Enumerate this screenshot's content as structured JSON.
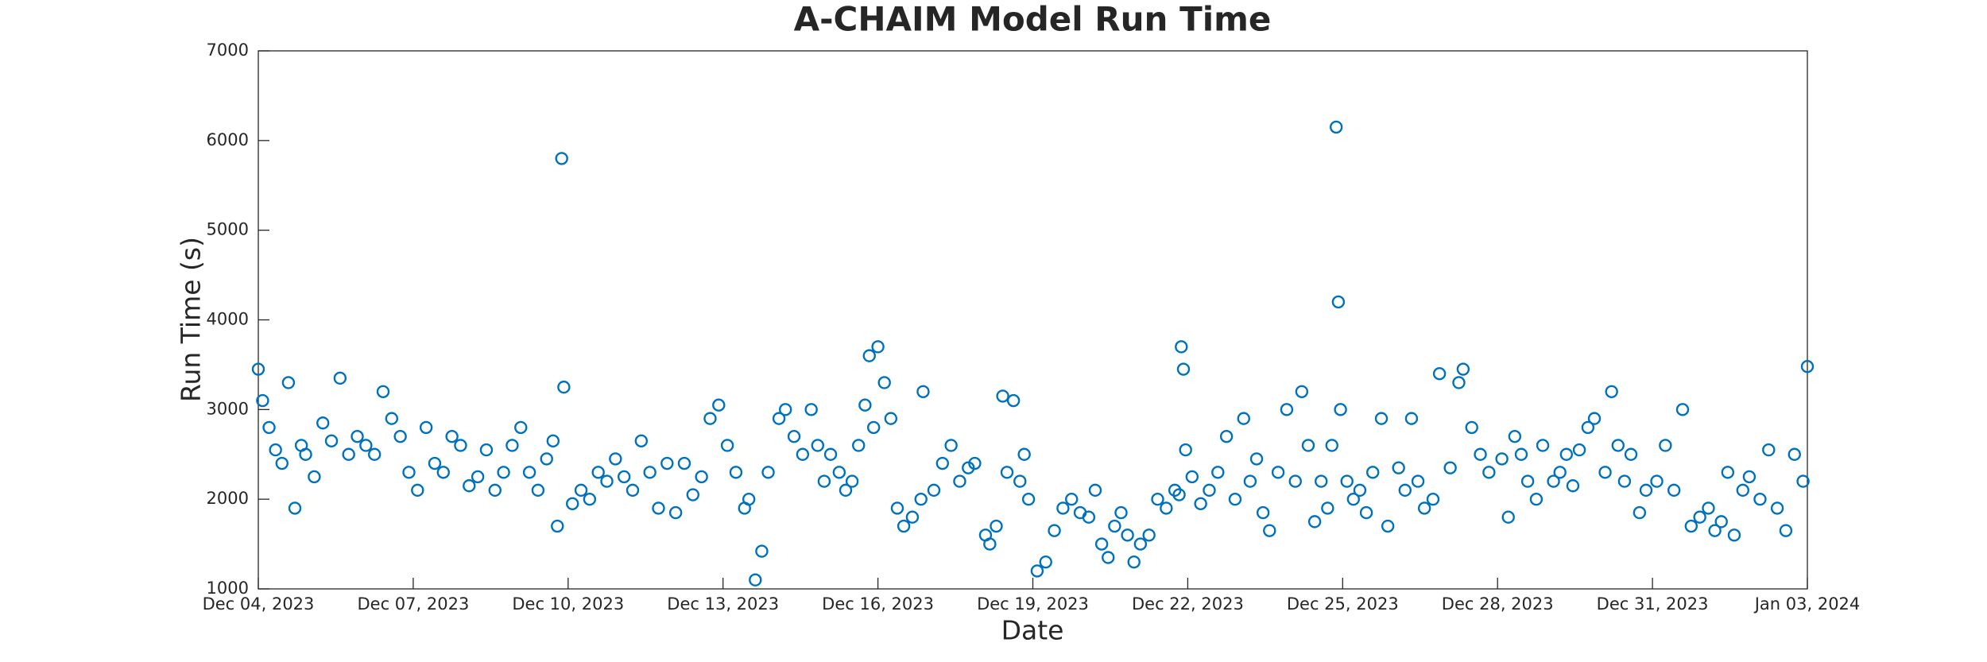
{
  "chart_data": {
    "type": "scatter",
    "title": "A-CHAIM Model Run Time",
    "x_label": "Date",
    "y_label": "Run Time (s)",
    "xlim": [
      "2023-12-04T00:00",
      "2024-01-03T00:00"
    ],
    "xticks": [
      {
        "value": "2023-12-04T00:00",
        "label": "Dec 04, 2023"
      },
      {
        "value": "2023-12-07T00:00",
        "label": "Dec 07, 2023"
      },
      {
        "value": "2023-12-10T00:00",
        "label": "Dec 10, 2023"
      },
      {
        "value": "2023-12-13T00:00",
        "label": "Dec 13, 2023"
      },
      {
        "value": "2023-12-16T00:00",
        "label": "Dec 16, 2023"
      },
      {
        "value": "2023-12-19T00:00",
        "label": "Dec 19, 2023"
      },
      {
        "value": "2023-12-22T00:00",
        "label": "Dec 22, 2023"
      },
      {
        "value": "2023-12-25T00:00",
        "label": "Dec 25, 2023"
      },
      {
        "value": "2023-12-28T00:00",
        "label": "Dec 28, 2023"
      },
      {
        "value": "2023-12-31T00:00",
        "label": "Dec 31, 2023"
      },
      {
        "value": "2024-01-03T00:00",
        "label": "Jan 03, 2024"
      }
    ],
    "ylim": [
      1000,
      7000
    ],
    "yticks": [
      1000,
      2000,
      3000,
      4000,
      5000,
      6000,
      7000
    ],
    "grid": false,
    "series": [
      {
        "color": "#0072BD",
        "x": [
          "2023-12-04T00:00",
          "2023-12-04T02:00",
          "2023-12-04T05:00",
          "2023-12-04T08:00",
          "2023-12-04T11:00",
          "2023-12-04T14:00",
          "2023-12-04T17:00",
          "2023-12-04T20:00",
          "2023-12-04T22:00",
          "2023-12-05T02:00",
          "2023-12-05T06:00",
          "2023-12-05T10:00",
          "2023-12-05T14:00",
          "2023-12-05T18:00",
          "2023-12-05T22:00",
          "2023-12-06T02:00",
          "2023-12-06T06:00",
          "2023-12-06T10:00",
          "2023-12-06T14:00",
          "2023-12-06T18:00",
          "2023-12-06T22:00",
          "2023-12-07T02:00",
          "2023-12-07T06:00",
          "2023-12-07T10:00",
          "2023-12-07T14:00",
          "2023-12-07T18:00",
          "2023-12-07T22:00",
          "2023-12-08T02:00",
          "2023-12-08T06:00",
          "2023-12-08T10:00",
          "2023-12-08T14:00",
          "2023-12-08T18:00",
          "2023-12-08T22:00",
          "2023-12-09T02:00",
          "2023-12-09T06:00",
          "2023-12-09T10:00",
          "2023-12-09T14:00",
          "2023-12-09T17:00",
          "2023-12-09T19:00",
          "2023-12-09T21:00",
          "2023-12-09T22:00",
          "2023-12-10T02:00",
          "2023-12-10T06:00",
          "2023-12-10T10:00",
          "2023-12-10T14:00",
          "2023-12-10T18:00",
          "2023-12-10T22:00",
          "2023-12-11T02:00",
          "2023-12-11T06:00",
          "2023-12-11T10:00",
          "2023-12-11T14:00",
          "2023-12-11T18:00",
          "2023-12-11T22:00",
          "2023-12-12T02:00",
          "2023-12-12T06:00",
          "2023-12-12T10:00",
          "2023-12-12T14:00",
          "2023-12-12T18:00",
          "2023-12-12T22:00",
          "2023-12-13T02:00",
          "2023-12-13T06:00",
          "2023-12-13T10:00",
          "2023-12-13T12:00",
          "2023-12-13T15:00",
          "2023-12-13T18:00",
          "2023-12-13T21:00",
          "2023-12-14T02:00",
          "2023-12-14T05:00",
          "2023-12-14T09:00",
          "2023-12-14T13:00",
          "2023-12-14T17:00",
          "2023-12-14T20:00",
          "2023-12-14T23:00",
          "2023-12-15T02:00",
          "2023-12-15T06:00",
          "2023-12-15T09:00",
          "2023-12-15T12:00",
          "2023-12-15T15:00",
          "2023-12-15T18:00",
          "2023-12-15T20:00",
          "2023-12-15T22:00",
          "2023-12-16T00:00",
          "2023-12-16T03:00",
          "2023-12-16T06:00",
          "2023-12-16T09:00",
          "2023-12-16T12:00",
          "2023-12-16T16:00",
          "2023-12-16T20:00",
          "2023-12-16T21:00",
          "2023-12-17T02:00",
          "2023-12-17T06:00",
          "2023-12-17T10:00",
          "2023-12-17T14:00",
          "2023-12-17T18:00",
          "2023-12-17T21:00",
          "2023-12-18T02:00",
          "2023-12-18T04:00",
          "2023-12-18T07:00",
          "2023-12-18T10:00",
          "2023-12-18T12:00",
          "2023-12-18T15:00",
          "2023-12-18T18:00",
          "2023-12-18T20:00",
          "2023-12-18T22:00",
          "2023-12-19T02:00",
          "2023-12-19T06:00",
          "2023-12-19T10:00",
          "2023-12-19T14:00",
          "2023-12-19T18:00",
          "2023-12-19T22:00",
          "2023-12-20T02:00",
          "2023-12-20T05:00",
          "2023-12-20T08:00",
          "2023-12-20T11:00",
          "2023-12-20T14:00",
          "2023-12-20T17:00",
          "2023-12-20T20:00",
          "2023-12-20T23:00",
          "2023-12-21T02:00",
          "2023-12-21T06:00",
          "2023-12-21T10:00",
          "2023-12-21T14:00",
          "2023-12-21T18:00",
          "2023-12-21T20:00",
          "2023-12-21T21:00",
          "2023-12-21T22:00",
          "2023-12-21T23:00",
          "2023-12-22T02:00",
          "2023-12-22T06:00",
          "2023-12-22T10:00",
          "2023-12-22T14:00",
          "2023-12-22T18:00",
          "2023-12-22T22:00",
          "2023-12-23T02:00",
          "2023-12-23T05:00",
          "2023-12-23T08:00",
          "2023-12-23T11:00",
          "2023-12-23T14:00",
          "2023-12-23T18:00",
          "2023-12-23T22:00",
          "2023-12-24T02:00",
          "2023-12-24T05:00",
          "2023-12-24T08:00",
          "2023-12-24T11:00",
          "2023-12-24T14:00",
          "2023-12-24T17:00",
          "2023-12-24T19:00",
          "2023-12-24T21:00",
          "2023-12-24T22:00",
          "2023-12-24T23:00",
          "2023-12-25T02:00",
          "2023-12-25T05:00",
          "2023-12-25T08:00",
          "2023-12-25T11:00",
          "2023-12-25T14:00",
          "2023-12-25T18:00",
          "2023-12-25T21:00",
          "2023-12-26T02:00",
          "2023-12-26T05:00",
          "2023-12-26T08:00",
          "2023-12-26T11:00",
          "2023-12-26T14:00",
          "2023-12-26T18:00",
          "2023-12-26T21:00",
          "2023-12-27T02:00",
          "2023-12-27T06:00",
          "2023-12-27T08:00",
          "2023-12-27T12:00",
          "2023-12-27T16:00",
          "2023-12-27T20:00",
          "2023-12-28T02:00",
          "2023-12-28T05:00",
          "2023-12-28T08:00",
          "2023-12-28T11:00",
          "2023-12-28T14:00",
          "2023-12-28T18:00",
          "2023-12-28T21:00",
          "2023-12-29T02:00",
          "2023-12-29T05:00",
          "2023-12-29T08:00",
          "2023-12-29T11:00",
          "2023-12-29T14:00",
          "2023-12-29T18:00",
          "2023-12-29T21:00",
          "2023-12-30T02:00",
          "2023-12-30T05:00",
          "2023-12-30T08:00",
          "2023-12-30T11:00",
          "2023-12-30T14:00",
          "2023-12-30T18:00",
          "2023-12-30T21:00",
          "2023-12-31T02:00",
          "2023-12-31T06:00",
          "2023-12-31T10:00",
          "2023-12-31T14:00",
          "2023-12-31T18:00",
          "2023-12-31T22:00",
          "2024-01-01T02:00",
          "2024-01-01T05:00",
          "2024-01-01T08:00",
          "2024-01-01T11:00",
          "2024-01-01T14:00",
          "2024-01-01T18:00",
          "2024-01-01T21:00",
          "2024-01-02T02:00",
          "2024-01-02T06:00",
          "2024-01-02T10:00",
          "2024-01-02T14:00",
          "2024-01-02T18:00",
          "2024-01-02T22:00",
          "2024-01-03T00:00"
        ],
        "values": [
          3450,
          3100,
          2800,
          2550,
          2400,
          3300,
          1900,
          2600,
          2500,
          2250,
          2850,
          2650,
          3350,
          2500,
          2700,
          2600,
          2500,
          3200,
          2900,
          2700,
          2300,
          2100,
          2800,
          2400,
          2300,
          2700,
          2600,
          2150,
          2250,
          2550,
          2100,
          2300,
          2600,
          2800,
          2300,
          2100,
          2450,
          2650,
          1700,
          5800,
          3250,
          1950,
          2100,
          2000,
          2300,
          2200,
          2450,
          2250,
          2100,
          2650,
          2300,
          1900,
          2400,
          1850,
          2400,
          2050,
          2250,
          2900,
          3050,
          2600,
          2300,
          1900,
          2000,
          1100,
          1420,
          2300,
          2900,
          3000,
          2700,
          2500,
          3000,
          2600,
          2200,
          2500,
          2300,
          2100,
          2200,
          2600,
          3050,
          3600,
          2800,
          3700,
          3300,
          2900,
          1900,
          1700,
          1800,
          2000,
          3200,
          2100,
          2400,
          2600,
          2200,
          2350,
          2400,
          1600,
          1500,
          1700,
          3150,
          2300,
          3100,
          2200,
          2500,
          2000,
          1200,
          1300,
          1650,
          1900,
          2000,
          1850,
          1800,
          2100,
          1500,
          1350,
          1700,
          1850,
          1600,
          1300,
          1500,
          1600,
          2000,
          1900,
          2100,
          2050,
          3700,
          3450,
          2550,
          2250,
          1950,
          2100,
          2300,
          2700,
          2000,
          2900,
          2200,
          2450,
          1850,
          1650,
          2300,
          3000,
          2200,
          3200,
          2600,
          1750,
          2200,
          1900,
          2600,
          6150,
          4200,
          3000,
          2200,
          2000,
          2100,
          1850,
          2300,
          2900,
          1700,
          2350,
          2100,
          2900,
          2200,
          1900,
          2000,
          3400,
          2350,
          3300,
          3450,
          2800,
          2500,
          2300,
          2450,
          1800,
          2700,
          2500,
          2200,
          2000,
          2600,
          2200,
          2300,
          2500,
          2150,
          2550,
          2800,
          2900,
          2300,
          3200,
          2600,
          2200,
          2500,
          1850,
          2100,
          2200,
          2600,
          2100,
          3000,
          1700,
          1800,
          1900,
          1650,
          1750,
          2300,
          1600,
          2100,
          2250,
          2000,
          2550,
          1900,
          1650,
          2500,
          2200,
          3480
        ]
      }
    ]
  }
}
